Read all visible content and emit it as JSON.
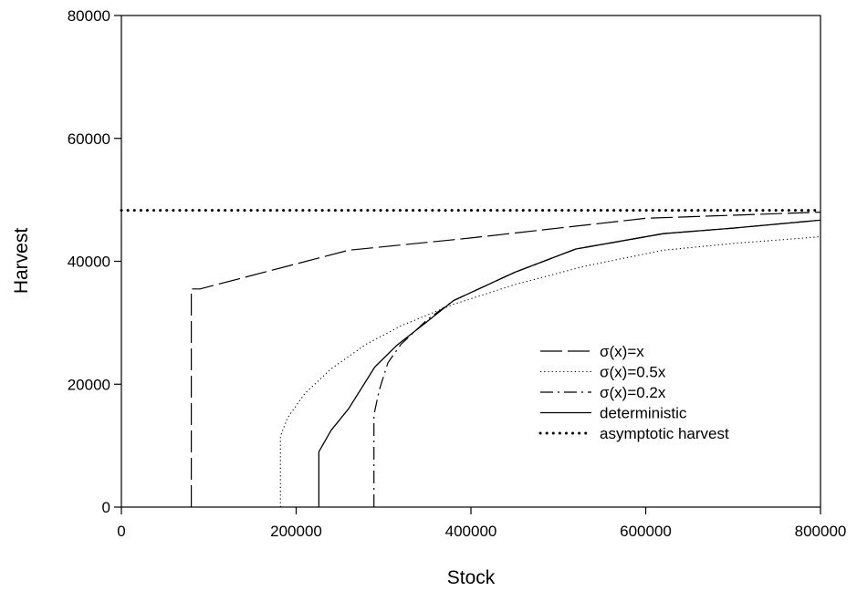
{
  "chart_data": {
    "type": "line",
    "title": "",
    "xlabel": "Stock",
    "ylabel": "Harvest",
    "xlim": [
      0,
      800000
    ],
    "ylim": [
      0,
      80000
    ],
    "xticks": [
      0,
      200000,
      400000,
      600000,
      800000
    ],
    "yticks": [
      0,
      20000,
      40000,
      60000,
      80000
    ],
    "grid": false,
    "legend_position": "right",
    "series": [
      {
        "name": "σ(x)=x",
        "dash": "long-dash",
        "points": [
          [
            80000,
            0
          ],
          [
            80000,
            35500
          ],
          [
            90000,
            35500
          ],
          [
            260000,
            41800
          ],
          [
            400000,
            43800
          ],
          [
            600000,
            47000
          ],
          [
            800000,
            48000
          ]
        ]
      },
      {
        "name": "σ(x)=0.5x",
        "dash": "dotted",
        "points": [
          [
            182000,
            0
          ],
          [
            182000,
            11500
          ],
          [
            190000,
            14500
          ],
          [
            210000,
            18500
          ],
          [
            240000,
            22500
          ],
          [
            280000,
            26500
          ],
          [
            320000,
            29500
          ],
          [
            380000,
            33000
          ],
          [
            450000,
            36200
          ],
          [
            530000,
            39200
          ],
          [
            620000,
            41800
          ],
          [
            700000,
            42900
          ],
          [
            800000,
            44000
          ]
        ]
      },
      {
        "name": "σ(x)=0.2x",
        "dash": "dash-dot",
        "points": [
          [
            289000,
            0
          ],
          [
            289000,
            15000
          ],
          [
            295000,
            19000
          ],
          [
            305000,
            23500
          ],
          [
            320000,
            26500
          ],
          [
            350000,
            30500
          ],
          [
            380000,
            33600
          ],
          [
            450000,
            38200
          ],
          [
            520000,
            42000
          ],
          [
            620000,
            44500
          ],
          [
            700000,
            45400
          ],
          [
            800000,
            46700
          ]
        ]
      },
      {
        "name": "deterministic",
        "dash": "solid",
        "points": [
          [
            226000,
            0
          ],
          [
            226000,
            9000
          ],
          [
            240000,
            12500
          ],
          [
            260000,
            16000
          ],
          [
            290000,
            22800
          ],
          [
            315000,
            26300
          ],
          [
            350000,
            30200
          ],
          [
            380000,
            33600
          ],
          [
            450000,
            38200
          ],
          [
            520000,
            42000
          ],
          [
            620000,
            44500
          ],
          [
            700000,
            45400
          ],
          [
            800000,
            46700
          ]
        ]
      },
      {
        "name": "asymptotic harvest",
        "dash": "heavy-dotted",
        "points": [
          [
            0,
            48300
          ],
          [
            800000,
            48300
          ]
        ]
      }
    ]
  }
}
